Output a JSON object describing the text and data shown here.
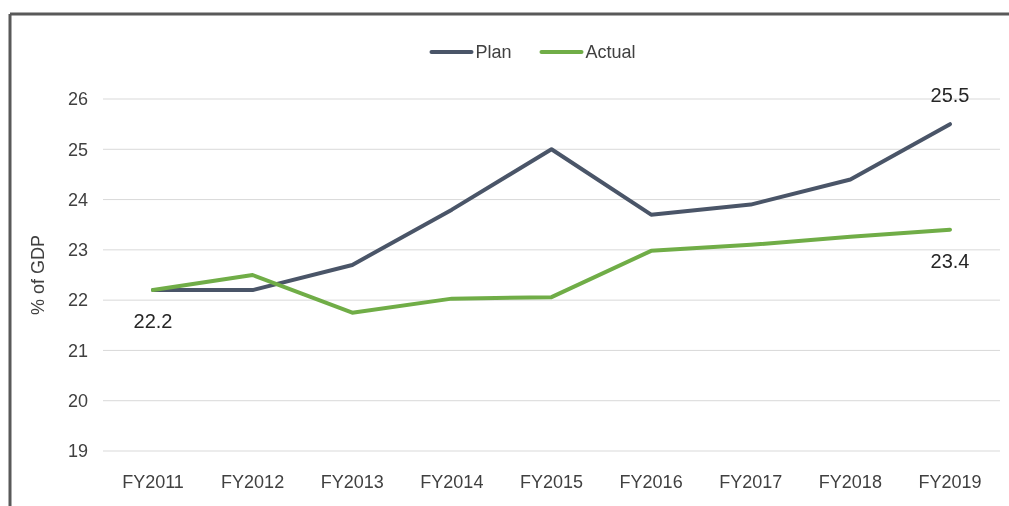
{
  "chart_data": {
    "type": "line",
    "ylabel": "% of GDP",
    "categories": [
      "FY2011",
      "FY2012",
      "FY2013",
      "FY2014",
      "FY2015",
      "FY2016",
      "FY2017",
      "FY2018",
      "FY2019"
    ],
    "series": [
      {
        "name": "Plan",
        "color": "#4a5568",
        "values": [
          22.2,
          22.2,
          22.7,
          23.8,
          25.0,
          23.7,
          23.9,
          24.4,
          25.5
        ],
        "value_labels": [
          null,
          null,
          null,
          null,
          null,
          null,
          null,
          null,
          "25.5"
        ]
      },
      {
        "name": "Actual",
        "color": "#70ad47",
        "values": [
          22.2,
          22.5,
          21.75,
          22.03,
          22.06,
          22.98,
          23.1,
          23.26,
          23.4
        ],
        "value_labels": [
          "22.2",
          null,
          null,
          null,
          null,
          null,
          null,
          null,
          "23.4"
        ]
      }
    ],
    "ylim": [
      19,
      26
    ],
    "yticks": [
      19,
      20,
      21,
      22,
      23,
      24,
      25,
      26
    ],
    "grid": "y",
    "legend": "top",
    "marker": "none",
    "line_style": "solid"
  }
}
